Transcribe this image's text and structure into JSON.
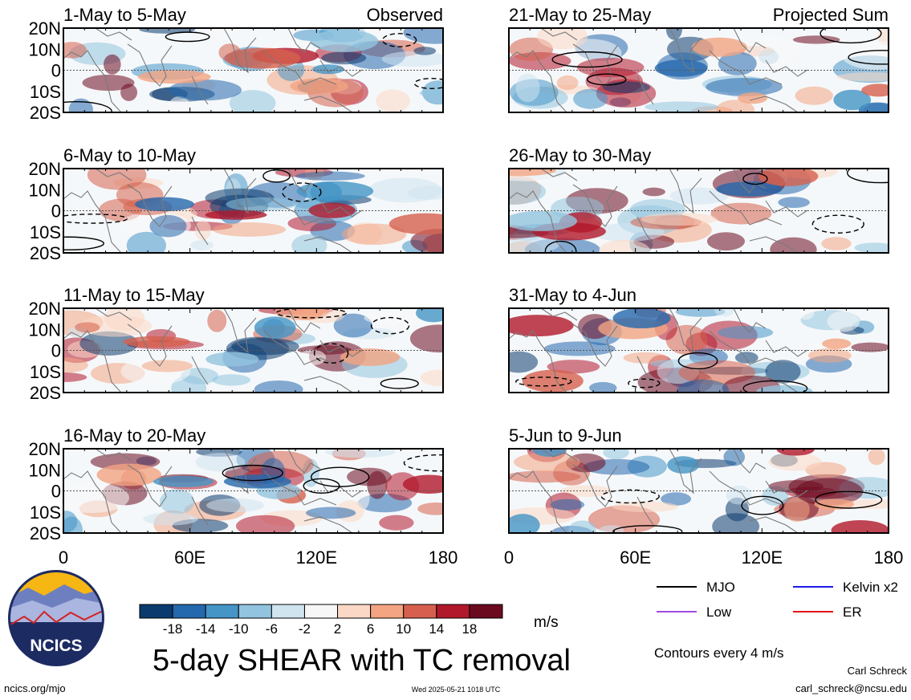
{
  "chart_data": {
    "type": "heatmap",
    "title": "5-day SHEAR with TC removal",
    "column_labels": [
      "Observed",
      "Projected Sum"
    ],
    "x_ticks": [
      "0",
      "60E",
      "120E",
      "180"
    ],
    "y_ticks": [
      "20N",
      "10N",
      "0",
      "10S",
      "20S"
    ],
    "xlim": [
      0,
      180
    ],
    "ylim": [
      -20,
      20
    ],
    "panels": [
      {
        "period": "1-May to 5-May",
        "column": "Observed"
      },
      {
        "period": "6-May to 10-May",
        "column": "Observed"
      },
      {
        "period": "11-May to 15-May",
        "column": "Observed"
      },
      {
        "period": "16-May to 20-May",
        "column": "Observed"
      },
      {
        "period": "21-May to 25-May",
        "column": "Projected Sum"
      },
      {
        "period": "26-May to 30-May",
        "column": "Projected Sum"
      },
      {
        "period": "31-May to 4-Jun",
        "column": "Projected Sum"
      },
      {
        "period": "5-Jun to 9-Jun",
        "column": "Projected Sum"
      }
    ],
    "colorbar": {
      "labels": [
        "-18",
        "-14",
        "-10",
        "-6",
        "-2",
        "2",
        "6",
        "10",
        "14",
        "18"
      ],
      "colors": [
        "#0b3a6e",
        "#2468ad",
        "#4595c6",
        "#92c4df",
        "#d0e4f0",
        "#f7f7f7",
        "#fbd8c5",
        "#f3a482",
        "#d6604d",
        "#b2182b",
        "#6b0a1f"
      ],
      "unit": "m/s"
    },
    "legend": [
      {
        "label": "MJO",
        "color": "#000000"
      },
      {
        "label": "Kelvin x2",
        "color": "#1a1ae6"
      },
      {
        "label": "Low",
        "color": "#a14be0"
      },
      {
        "label": "ER",
        "color": "#e60f0f"
      }
    ],
    "contour_note": "Contours every 4 m/s"
  },
  "footer": {
    "site": "ncics.org/mjo",
    "timestamp": "Wed 2025-05-21 1018 UTC",
    "author": "Carl Schreck",
    "email": "carl_schreck@ncsu.edu"
  },
  "logo": {
    "text": "NCICS"
  }
}
